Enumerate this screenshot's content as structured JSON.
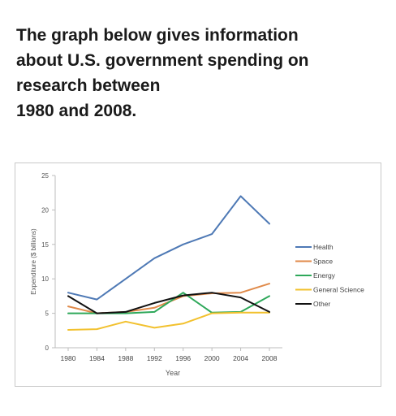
{
  "heading": {
    "lines": [
      "The graph below gives information",
      "about U.S. government spending on",
      "research between",
      "1980 and 2008."
    ]
  },
  "chart_data": {
    "type": "line",
    "title": "",
    "xlabel": "Year",
    "ylabel": "Expenditure ($ billions)",
    "x": [
      1980,
      1984,
      1988,
      1992,
      1996,
      2000,
      2004,
      2008
    ],
    "ylim": [
      0,
      25
    ],
    "yticks": [
      0,
      5,
      10,
      15,
      20,
      25
    ],
    "grid": false,
    "legend_position": "right",
    "series": [
      {
        "name": "Health",
        "color": "#4e79b5",
        "values": [
          8,
          7,
          10,
          13,
          15,
          16.5,
          22,
          18
        ]
      },
      {
        "name": "Space",
        "color": "#e08a4a",
        "values": [
          6,
          5,
          5.2,
          5.8,
          7.5,
          7.9,
          8,
          9.3
        ]
      },
      {
        "name": "Energy",
        "color": "#2ea85a",
        "values": [
          5,
          5,
          5,
          5.2,
          8,
          5.1,
          5.2,
          7.5
        ]
      },
      {
        "name": "General Science",
        "color": "#f2c12e",
        "values": [
          2.6,
          2.7,
          3.8,
          2.9,
          3.5,
          5,
          5.1,
          5.1
        ]
      },
      {
        "name": "Other",
        "color": "#111111",
        "values": [
          7.5,
          5,
          5.2,
          6.5,
          7.6,
          8,
          7.3,
          5.2
        ]
      }
    ]
  }
}
